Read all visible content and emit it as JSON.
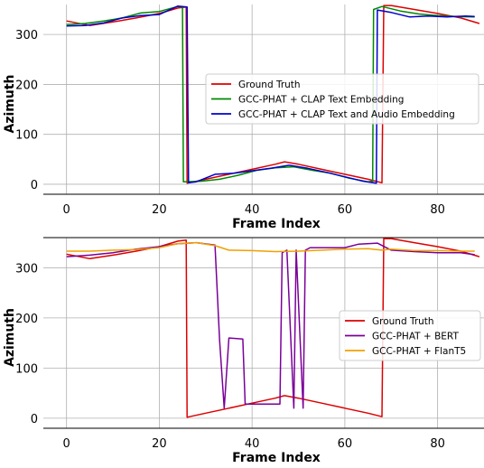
{
  "chart_data": [
    {
      "type": "line",
      "title": "",
      "xlabel": "Frame Index",
      "ylabel": "Azimuth",
      "xlim": [
        -5,
        90
      ],
      "ylim": [
        -20,
        360
      ],
      "xticks": [
        "0",
        "20",
        "40",
        "60",
        "80"
      ],
      "yticks": [
        "0",
        "100",
        "200",
        "300"
      ],
      "grid": true,
      "legend_position": "center-right",
      "series": [
        {
          "name": "Ground Truth",
          "color": "#dd0000",
          "x": [
            0,
            5,
            10,
            15,
            20,
            24,
            25.8,
            26,
            30,
            35,
            40,
            45,
            47,
            50,
            55,
            60,
            65,
            68,
            68.4,
            70,
            75,
            80,
            85,
            89
          ],
          "y": [
            327,
            318,
            325,
            333,
            342,
            353,
            355,
            2,
            10,
            20,
            30,
            40,
            45,
            40,
            30,
            20,
            10,
            3,
            358,
            358,
            350,
            342,
            333,
            322
          ]
        },
        {
          "name": "GCC-PHAT + CLAP Text Embedding",
          "color": "#008800",
          "x": [
            0,
            4,
            8,
            12,
            16,
            20,
            24,
            25,
            25.2,
            29,
            33,
            37,
            41,
            45,
            49,
            53,
            57,
            61,
            65,
            66,
            66.2,
            68,
            72,
            76,
            80,
            84,
            88
          ],
          "y": [
            320,
            322,
            327,
            333,
            343,
            346,
            356,
            355,
            5,
            6,
            10,
            18,
            28,
            33,
            35,
            28,
            22,
            12,
            5,
            6,
            350,
            356,
            347,
            341,
            338,
            336,
            335
          ]
        },
        {
          "name": "GCC-PHAT + CLAP Text and Audio Embedding",
          "color": "#0000cc",
          "x": [
            0,
            4,
            8,
            12,
            16,
            20,
            24,
            26,
            26.3,
            28,
            32,
            36,
            40,
            44,
            48,
            52,
            56,
            60,
            64,
            66.8,
            67,
            70,
            74,
            78,
            82,
            86,
            88
          ],
          "y": [
            317,
            318,
            323,
            333,
            338,
            340,
            357,
            355,
            3,
            5,
            20,
            22,
            27,
            32,
            38,
            32,
            24,
            15,
            6,
            2,
            349,
            344,
            335,
            337,
            335,
            337,
            336
          ]
        }
      ]
    },
    {
      "type": "line",
      "title": "",
      "xlabel": "Frame Index",
      "ylabel": "Azimuth",
      "xlim": [
        -5,
        90
      ],
      "ylim": [
        -20,
        360
      ],
      "xticks": [
        "0",
        "20",
        "40",
        "60",
        "80"
      ],
      "yticks": [
        "0",
        "100",
        "200",
        "300"
      ],
      "grid": true,
      "legend_position": "center-right",
      "series": [
        {
          "name": "Ground Truth",
          "color": "#dd0000",
          "x": [
            0,
            5,
            10,
            15,
            20,
            24,
            25.8,
            26,
            30,
            35,
            40,
            45,
            47,
            50,
            55,
            60,
            65,
            68,
            68.4,
            70,
            75,
            80,
            85,
            89
          ],
          "y": [
            327,
            318,
            325,
            333,
            342,
            353,
            355,
            2,
            10,
            20,
            30,
            40,
            45,
            40,
            30,
            20,
            10,
            3,
            358,
            358,
            350,
            342,
            333,
            322
          ]
        },
        {
          "name": "GCC-PHAT + BERT",
          "color": "#7a0099",
          "x": [
            0,
            5,
            10,
            15,
            20,
            24,
            28,
            32,
            33,
            34,
            35,
            38,
            38.5,
            40,
            46,
            46.5,
            47.5,
            49,
            49.5,
            51,
            51.5,
            52.5,
            53.5,
            55,
            60,
            63,
            67,
            70,
            75,
            80,
            85,
            88
          ],
          "y": [
            322,
            325,
            330,
            337,
            342,
            348,
            350,
            345,
            155,
            20,
            160,
            158,
            28,
            28,
            28,
            330,
            335,
            20,
            335,
            20,
            335,
            340,
            340,
            340,
            340,
            347,
            349,
            335,
            332,
            330,
            330,
            326
          ]
        },
        {
          "name": "GCC-PHAT + FlanT5",
          "color": "#f0a000",
          "x": [
            0,
            5,
            10,
            15,
            20,
            24,
            28,
            32,
            35,
            40,
            45,
            50,
            55,
            60,
            65,
            68,
            70,
            75,
            80,
            85,
            88
          ],
          "y": [
            333,
            333,
            335,
            336,
            340,
            348,
            350,
            344,
            335,
            334,
            332,
            333,
            335,
            337,
            338,
            335,
            337,
            334,
            334,
            333,
            333
          ]
        }
      ]
    }
  ]
}
